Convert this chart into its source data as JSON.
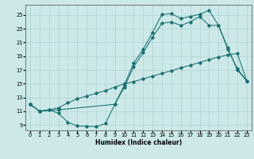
{
  "xlabel": "Humidex (Indice chaleur)",
  "bg_color": "#cce8e8",
  "line_color": "#1a7070",
  "grid_color": "#b0d4d4",
  "x_ticks": [
    0,
    1,
    2,
    3,
    4,
    5,
    6,
    7,
    8,
    9,
    10,
    11,
    12,
    13,
    14,
    15,
    16,
    17,
    18,
    19,
    20,
    21,
    22,
    23
  ],
  "y_ticks": [
    9,
    11,
    13,
    15,
    17,
    19,
    21,
    23,
    25
  ],
  "xlim": [
    -0.5,
    23.5
  ],
  "ylim": [
    8.2,
    26.5
  ],
  "line1_x": [
    0,
    1,
    2,
    3,
    4,
    5,
    6,
    7,
    8,
    9,
    10,
    11,
    12,
    13,
    14,
    15,
    16,
    17,
    18,
    19,
    20,
    21,
    22,
    23
  ],
  "line1_y": [
    12.0,
    11.0,
    11.2,
    10.7,
    9.4,
    8.85,
    8.8,
    8.75,
    9.2,
    12.0,
    14.8,
    18.0,
    20.0,
    22.5,
    25.1,
    25.2,
    24.5,
    24.8,
    25.1,
    25.7,
    23.5,
    20.2,
    17.0,
    15.4
  ],
  "line2_x": [
    0,
    1,
    3,
    9,
    10,
    11,
    12,
    13,
    14,
    15,
    16,
    17,
    18,
    19,
    20,
    21,
    22,
    23
  ],
  "line2_y": [
    12.0,
    11.0,
    11.2,
    12.0,
    14.5,
    17.5,
    19.5,
    21.8,
    23.8,
    24.0,
    23.5,
    24.0,
    24.8,
    23.5,
    23.5,
    20.0,
    17.2,
    15.4
  ],
  "line3_x": [
    0,
    1,
    2,
    3,
    4,
    5,
    6,
    7,
    8,
    9,
    10,
    11,
    12,
    13,
    14,
    15,
    16,
    17,
    18,
    19,
    20,
    21,
    22,
    23
  ],
  "line3_y": [
    12.0,
    11.0,
    11.2,
    11.5,
    12.2,
    12.8,
    13.2,
    13.6,
    14.0,
    14.5,
    15.0,
    15.3,
    15.7,
    16.1,
    16.5,
    16.9,
    17.3,
    17.7,
    18.1,
    18.5,
    18.9,
    19.2,
    19.4,
    15.4
  ]
}
